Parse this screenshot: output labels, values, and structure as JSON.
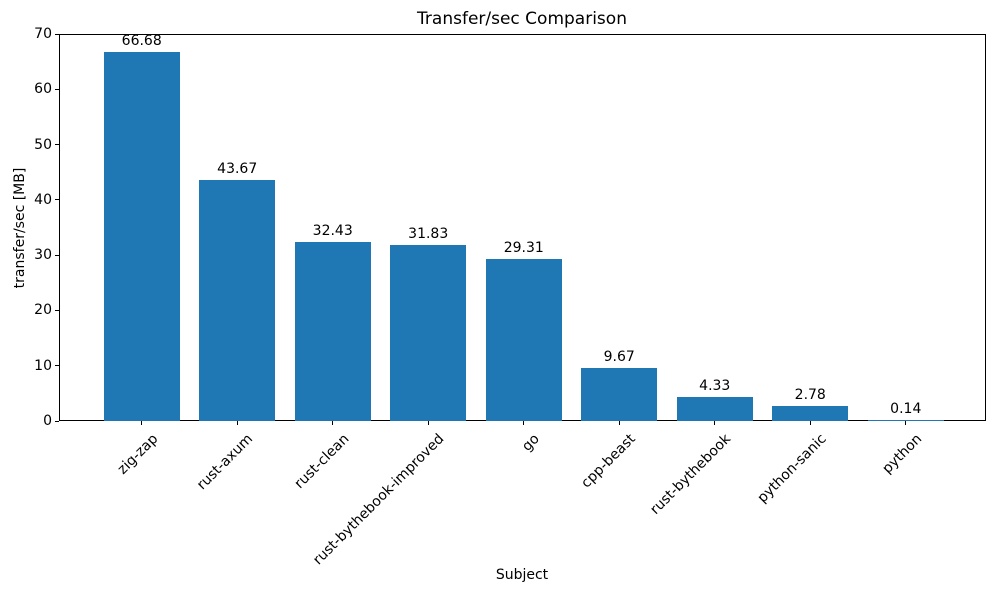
{
  "title": "Transfer/sec Comparison",
  "chart_data": {
    "type": "bar",
    "title": "Transfer/sec Comparison",
    "xlabel": "Subject",
    "ylabel": "transfer/sec [MB]",
    "categories": [
      "zig-zap",
      "rust-axum",
      "rust-clean",
      "rust-bythebook-improved",
      "go",
      "cpp-beast",
      "rust-bythebook",
      "python-sanic",
      "python"
    ],
    "values": [
      66.68,
      43.67,
      32.43,
      31.83,
      29.31,
      9.67,
      4.33,
      2.78,
      0.14
    ],
    "value_labels": [
      "66.68",
      "43.67",
      "32.43",
      "31.83",
      "29.31",
      "9.67",
      "4.33",
      "2.78",
      "0.14"
    ],
    "ylim": [
      0,
      70
    ],
    "yticks": [
      0,
      10,
      20,
      30,
      40,
      50,
      60,
      70
    ],
    "bar_color": "#1f77b4",
    "background_color": "#ffffff",
    "text_color": "#000000",
    "grid": false,
    "legend": null,
    "x_tick_rotation": 45
  }
}
